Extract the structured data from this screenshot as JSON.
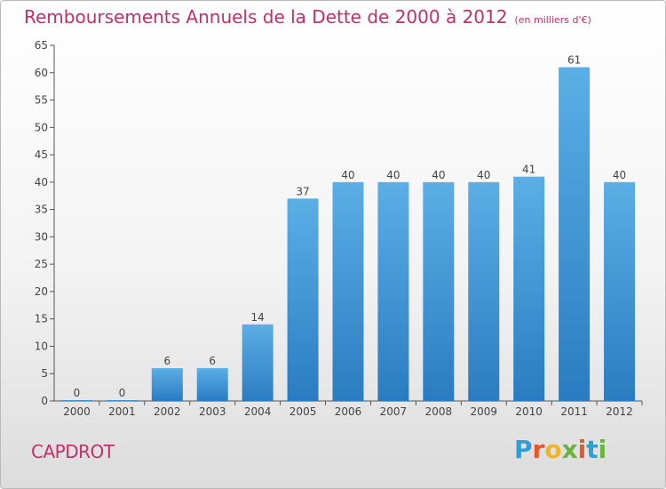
{
  "title": "Remboursements Annuels de la Dette de 2000 à 2012",
  "subtitle": "(en milliers d'€)",
  "commune": "CAPDROT",
  "logo": {
    "letters": [
      "P",
      "r",
      "o",
      "x",
      "i",
      "t",
      "i"
    ],
    "colors": [
      "#2f9fd8",
      "#e8572a",
      "#f0b428",
      "#6db33f",
      "#e8572a",
      "#2f9fd8",
      "#6db33f"
    ]
  },
  "colors": {
    "title": "#c0306a",
    "bar_top": "#5caee6",
    "bar_bottom": "#2a7cc0",
    "axis": "#555555"
  },
  "chart_data": {
    "type": "bar",
    "categories": [
      "2000",
      "2001",
      "2002",
      "2003",
      "2004",
      "2005",
      "2006",
      "2007",
      "2008",
      "2009",
      "2010",
      "2011",
      "2012"
    ],
    "values": [
      0,
      0,
      6,
      6,
      14,
      37,
      40,
      40,
      40,
      40,
      41,
      61,
      40
    ],
    "ylim": [
      0,
      65
    ],
    "yticks": [
      0,
      5,
      10,
      15,
      20,
      25,
      30,
      35,
      40,
      45,
      50,
      55,
      60,
      65
    ],
    "grid": false,
    "data_labels": true
  }
}
